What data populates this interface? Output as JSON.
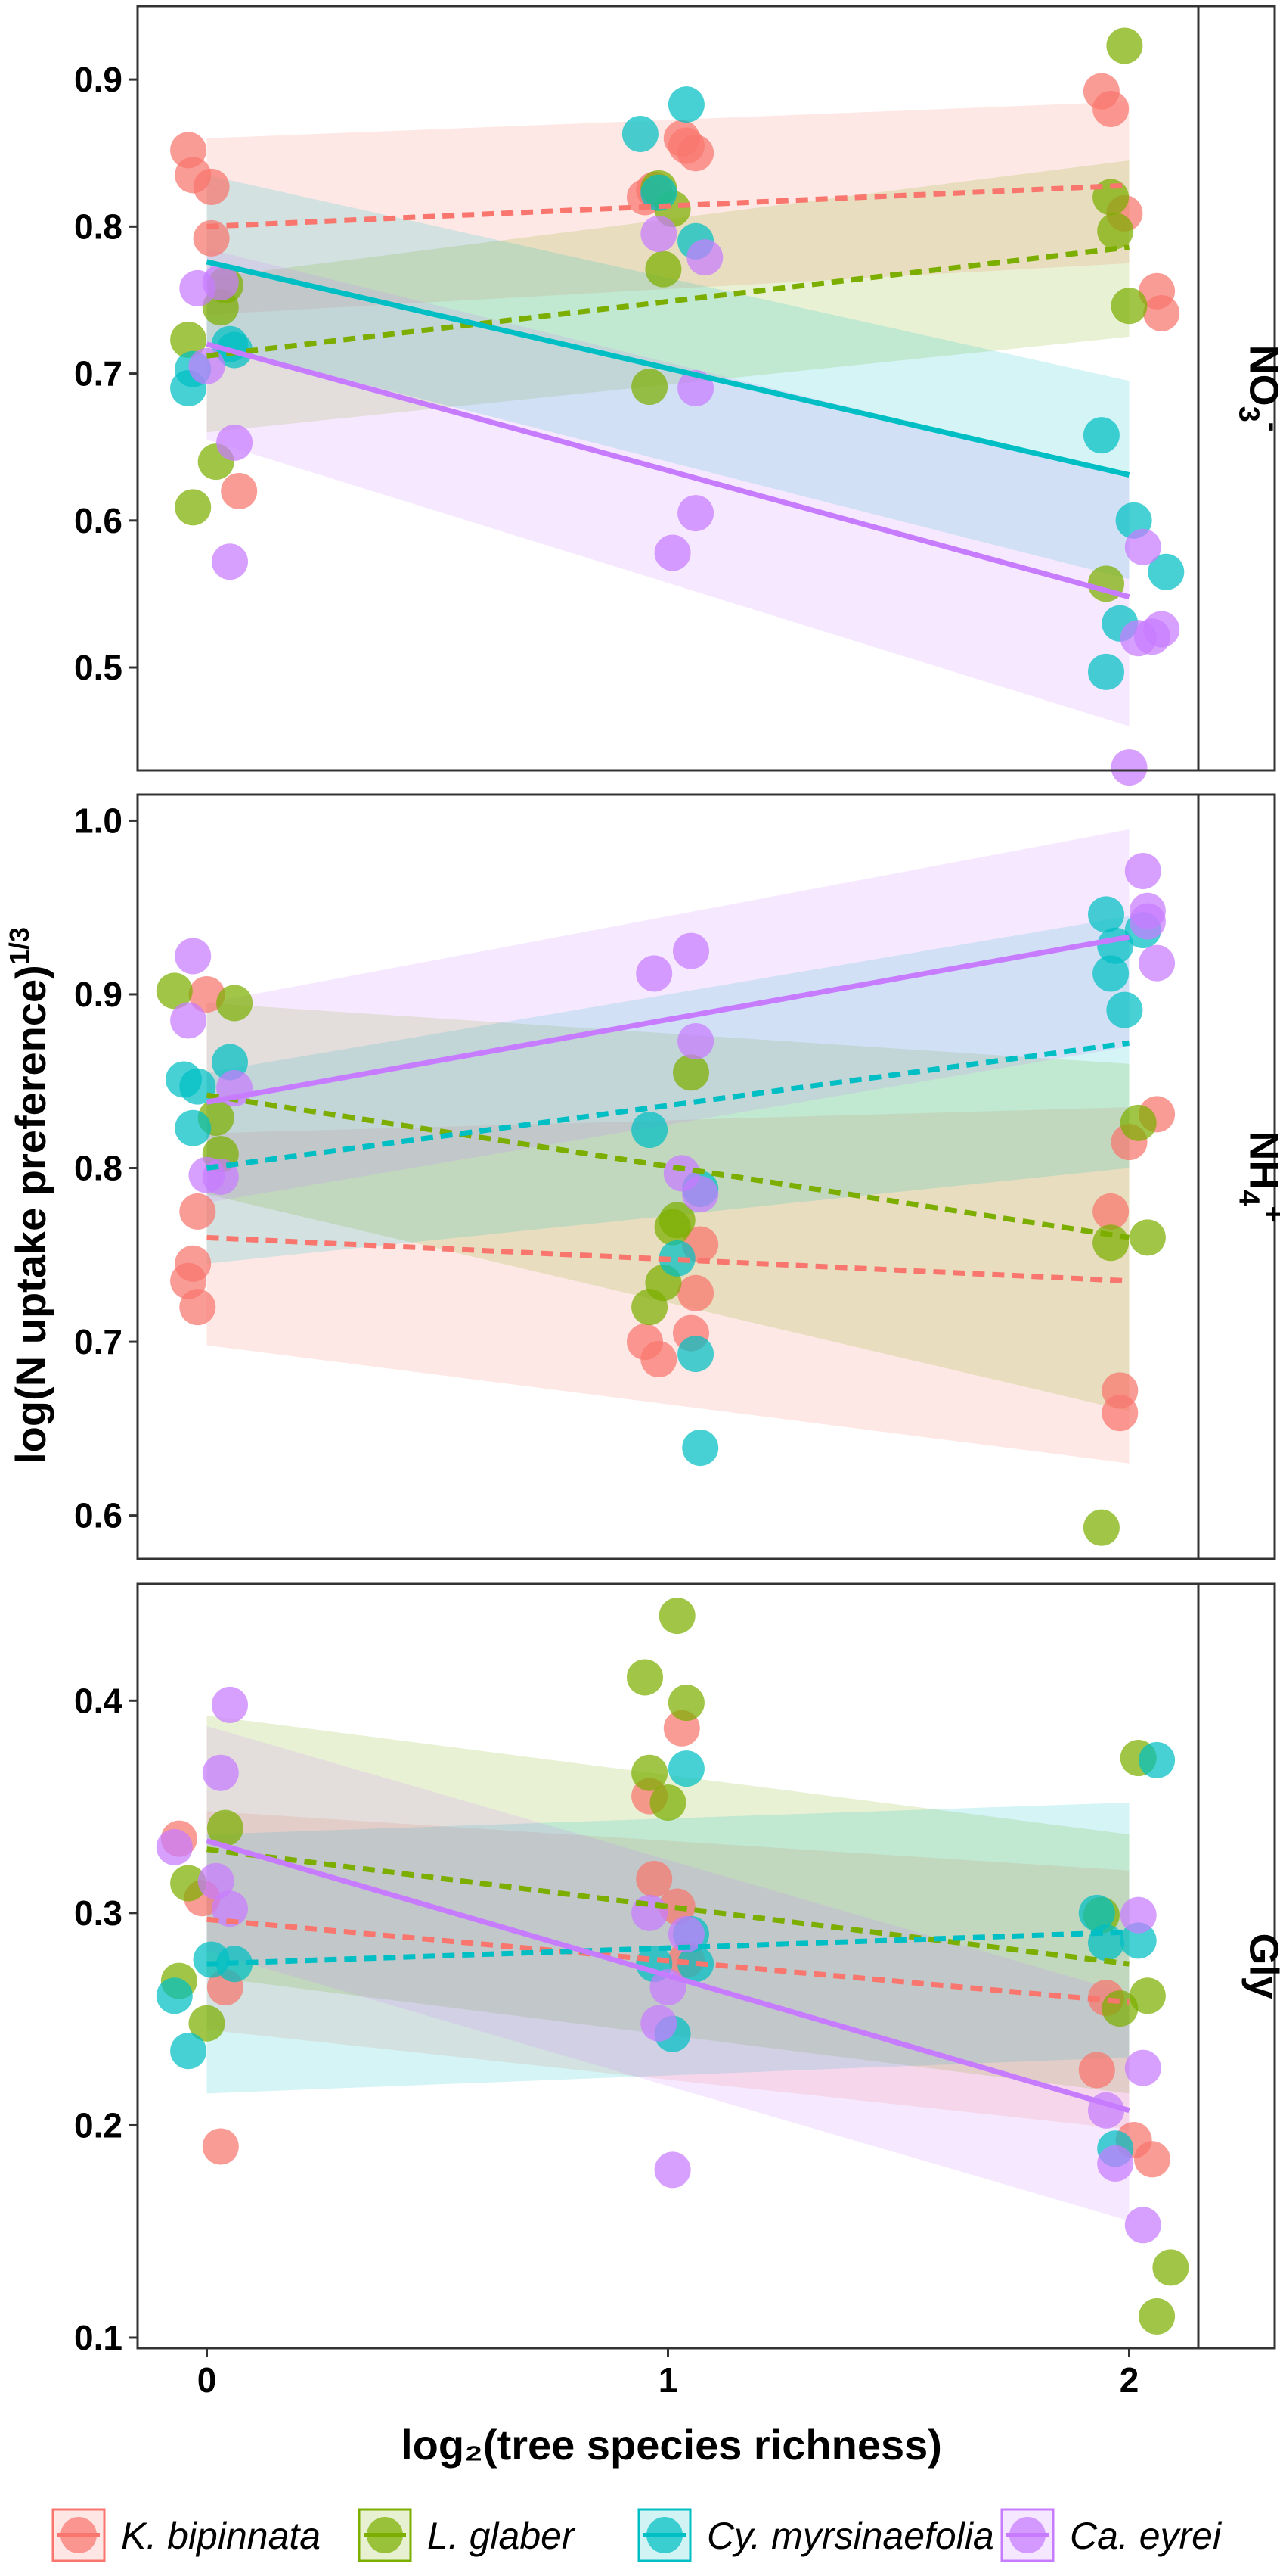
{
  "colors": {
    "K. bipinnata": "#f8766d",
    "L. glaber": "#7cae00",
    "Cy. myrsinaefolia": "#00bfc4",
    "Ca. eyrei": "#c77cff"
  },
  "legend": [
    "K. bipinnata",
    "L. glaber",
    "Cy. myrsinaefolia",
    "Ca. eyrei"
  ],
  "chart_data": {
    "type": "scatter",
    "xlabel": "log₂(tree species richness)",
    "ylabel": "log(N uptake preference)",
    "ylabel_sup": "1/3",
    "x_ticks": [
      0,
      1,
      2
    ],
    "xlim": [
      -0.15,
      2.15
    ],
    "grid": false,
    "legend_position": "bottom",
    "panels": [
      {
        "strip": "NO₃⁻",
        "strip_main": "NO",
        "strip_sub": "3",
        "strip_sup": "-",
        "ylim": [
          0.43,
          0.95
        ],
        "y_ticks": [
          "0.5",
          "0.6",
          "0.7",
          "0.8",
          "0.9"
        ],
        "series": [
          {
            "name": "K. bipinnata",
            "points": [
              [
                -0.04,
                0.852
              ],
              [
                -0.03,
                0.835
              ],
              [
                0.01,
                0.827
              ],
              [
                0.01,
                0.792
              ],
              [
                0.07,
                0.62
              ],
              [
                0.95,
                0.82
              ],
              [
                0.97,
                0.825
              ],
              [
                1.03,
                0.86
              ],
              [
                1.04,
                0.855
              ],
              [
                1.06,
                0.85
              ],
              [
                1.94,
                0.892
              ],
              [
                1.96,
                0.88
              ],
              [
                1.99,
                0.809
              ],
              [
                2.06,
                0.756
              ],
              [
                2.07,
                0.741
              ]
            ],
            "trend": {
              "y0": 0.8,
              "y2": 0.828,
              "dashed": true,
              "ci_low": [
                0.74,
                0.775
              ],
              "ci_high": [
                0.86,
                0.885
              ]
            }
          },
          {
            "name": "L. glaber",
            "points": [
              [
                -0.04,
                0.723
              ],
              [
                -0.03,
                0.609
              ],
              [
                0.02,
                0.64
              ],
              [
                0.03,
                0.745
              ],
              [
                0.04,
                0.76
              ],
              [
                0.96,
                0.691
              ],
              [
                0.98,
                0.826
              ],
              [
                0.99,
                0.771
              ],
              [
                1.01,
                0.812
              ],
              [
                1.95,
                0.557
              ],
              [
                1.96,
                0.82
              ],
              [
                1.97,
                0.797
              ],
              [
                1.99,
                0.923
              ],
              [
                2.0,
                0.746
              ]
            ],
            "trend": {
              "y0": 0.712,
              "y2": 0.786,
              "dashed": true,
              "ci_low": [
                0.66,
                0.725
              ],
              "ci_high": [
                0.765,
                0.845
              ]
            }
          },
          {
            "name": "Cy. myrsinaefolia",
            "points": [
              [
                -0.04,
                0.69
              ],
              [
                -0.03,
                0.703
              ],
              [
                0.05,
                0.72
              ],
              [
                0.06,
                0.716
              ],
              [
                0.94,
                0.863
              ],
              [
                0.98,
                0.823
              ],
              [
                1.04,
                0.883
              ],
              [
                1.06,
                0.79
              ],
              [
                1.94,
                0.658
              ],
              [
                1.95,
                0.497
              ],
              [
                1.98,
                0.53
              ],
              [
                2.01,
                0.6
              ],
              [
                2.08,
                0.565
              ]
            ],
            "trend": {
              "y0": 0.776,
              "y2": 0.631,
              "dashed": false,
              "ci_low": [
                0.72,
                0.56
              ],
              "ci_high": [
                0.835,
                0.695
              ]
            }
          },
          {
            "name": "Ca. eyrei",
            "points": [
              [
                -0.02,
                0.758
              ],
              [
                0.03,
                0.762
              ],
              [
                0.05,
                0.572
              ],
              [
                0.06,
                0.653
              ],
              [
                0.0,
                0.705
              ],
              [
                0.98,
                0.795
              ],
              [
                1.01,
                0.578
              ],
              [
                1.06,
                0.69
              ],
              [
                1.06,
                0.605
              ],
              [
                1.08,
                0.779
              ],
              [
                2.0,
                0.432
              ],
              [
                2.02,
                0.52
              ],
              [
                2.03,
                0.582
              ],
              [
                2.05,
                0.521
              ],
              [
                2.07,
                0.526
              ]
            ],
            "trend": {
              "y0": 0.72,
              "y2": 0.548,
              "dashed": false,
              "ci_low": [
                0.655,
                0.46
              ],
              "ci_high": [
                0.785,
                0.63
              ]
            }
          }
        ]
      },
      {
        "strip": "NH₄⁺",
        "strip_main": "NH",
        "strip_sub": "4",
        "strip_sup": "+",
        "ylim": [
          0.575,
          1.015
        ],
        "y_ticks": [
          "0.6",
          "0.7",
          "0.8",
          "0.9",
          "1.0"
        ],
        "series": [
          {
            "name": "K. bipinnata",
            "points": [
              [
                -0.04,
                0.735
              ],
              [
                -0.03,
                0.745
              ],
              [
                -0.02,
                0.72
              ],
              [
                -0.02,
                0.775
              ],
              [
                0.0,
                0.9
              ],
              [
                0.95,
                0.7
              ],
              [
                0.98,
                0.69
              ],
              [
                1.05,
                0.705
              ],
              [
                1.06,
                0.728
              ],
              [
                1.07,
                0.756
              ],
              [
                1.96,
                0.775
              ],
              [
                1.98,
                0.672
              ],
              [
                1.98,
                0.659
              ],
              [
                2.0,
                0.815
              ],
              [
                2.06,
                0.831
              ]
            ],
            "trend": {
              "y0": 0.76,
              "y2": 0.735,
              "dashed": true,
              "ci_low": [
                0.698,
                0.63
              ],
              "ci_high": [
                0.82,
                0.835
              ]
            }
          },
          {
            "name": "L. glaber",
            "points": [
              [
                -0.07,
                0.902
              ],
              [
                0.02,
                0.829
              ],
              [
                0.03,
                0.808
              ],
              [
                0.06,
                0.895
              ],
              [
                0.96,
                0.72
              ],
              [
                0.99,
                0.734
              ],
              [
                1.01,
                0.766
              ],
              [
                1.02,
                0.77
              ],
              [
                1.05,
                0.855
              ],
              [
                1.94,
                0.593
              ],
              [
                1.96,
                0.757
              ],
              [
                2.02,
                0.826
              ],
              [
                2.04,
                0.76
              ]
            ],
            "trend": {
              "y0": 0.842,
              "y2": 0.76,
              "dashed": true,
              "ci_low": [
                0.785,
                0.66
              ],
              "ci_high": [
                0.895,
                0.86
              ]
            }
          },
          {
            "name": "Cy. myrsinaefolia",
            "points": [
              [
                -0.05,
                0.851
              ],
              [
                -0.03,
                0.823
              ],
              [
                -0.02,
                0.847
              ],
              [
                0.05,
                0.861
              ],
              [
                0.96,
                0.822
              ],
              [
                1.02,
                0.748
              ],
              [
                1.06,
                0.693
              ],
              [
                1.07,
                0.788
              ],
              [
                1.07,
                0.639
              ],
              [
                1.95,
                0.946
              ],
              [
                1.96,
                0.912
              ],
              [
                1.97,
                0.928
              ],
              [
                1.99,
                0.891
              ],
              [
                2.03,
                0.937
              ]
            ],
            "trend": {
              "y0": 0.8,
              "y2": 0.872,
              "dashed": true,
              "ci_low": [
                0.745,
                0.8
              ],
              "ci_high": [
                0.855,
                0.945
              ]
            }
          },
          {
            "name": "Ca. eyrei",
            "points": [
              [
                -0.03,
                0.922
              ],
              [
                -0.04,
                0.885
              ],
              [
                0.0,
                0.796
              ],
              [
                0.03,
                0.795
              ],
              [
                0.06,
                0.846
              ],
              [
                0.97,
                0.912
              ],
              [
                1.05,
                0.925
              ],
              [
                1.03,
                0.797
              ],
              [
                1.06,
                0.873
              ],
              [
                1.07,
                0.785
              ],
              [
                2.03,
                0.971
              ],
              [
                2.04,
                0.948
              ],
              [
                2.06,
                0.918
              ],
              [
                2.04,
                0.942
              ]
            ],
            "trend": {
              "y0": 0.838,
              "y2": 0.933,
              "dashed": false,
              "ci_low": [
                0.78,
                0.87
              ],
              "ci_high": [
                0.895,
                0.995
              ]
            }
          }
        ]
      },
      {
        "strip": "Gly",
        "ylim": [
          0.095,
          0.455
        ],
        "y_ticks": [
          "0.1",
          "0.2",
          "0.3",
          "0.4"
        ],
        "series": [
          {
            "name": "K. bipinnata",
            "points": [
              [
                -0.06,
                0.335
              ],
              [
                -0.01,
                0.307
              ],
              [
                0.03,
                0.19
              ],
              [
                0.04,
                0.265
              ],
              [
                0.96,
                0.355
              ],
              [
                0.97,
                0.316
              ],
              [
                1.02,
                0.303
              ],
              [
                1.03,
                0.387
              ],
              [
                1.04,
                0.278
              ],
              [
                1.93,
                0.226
              ],
              [
                1.95,
                0.26
              ],
              [
                2.01,
                0.193
              ],
              [
                2.05,
                0.184
              ]
            ],
            "trend": {
              "y0": 0.297,
              "y2": 0.258,
              "dashed": true,
              "ci_low": [
                0.245,
                0.198
              ],
              "ci_high": [
                0.348,
                0.32
              ]
            }
          },
          {
            "name": "L. glaber",
            "points": [
              [
                -0.06,
                0.268
              ],
              [
                -0.04,
                0.314
              ],
              [
                0.0,
                0.248
              ],
              [
                0.04,
                0.34
              ],
              [
                0.95,
                0.411
              ],
              [
                0.96,
                0.366
              ],
              [
                1.0,
                0.352
              ],
              [
                1.02,
                0.44
              ],
              [
                1.04,
                0.399
              ],
              [
                1.94,
                0.299
              ],
              [
                1.98,
                0.255
              ],
              [
                2.02,
                0.373
              ],
              [
                2.04,
                0.261
              ],
              [
                2.06,
                0.11
              ],
              [
                2.09,
                0.133
              ]
            ],
            "trend": {
              "y0": 0.33,
              "y2": 0.276,
              "dashed": true,
              "ci_low": [
                0.27,
                0.215
              ],
              "ci_high": [
                0.393,
                0.337
              ]
            }
          },
          {
            "name": "Cy. myrsinaefolia",
            "points": [
              [
                -0.07,
                0.261
              ],
              [
                -0.04,
                0.235
              ],
              [
                0.01,
                0.278
              ],
              [
                0.06,
                0.276
              ],
              [
                0.97,
                0.276
              ],
              [
                1.01,
                0.243
              ],
              [
                1.04,
                0.368
              ],
              [
                1.05,
                0.29
              ],
              [
                1.06,
                0.276
              ],
              [
                1.93,
                0.3
              ],
              [
                1.95,
                0.286
              ],
              [
                1.97,
                0.189
              ],
              [
                2.02,
                0.287
              ],
              [
                2.06,
                0.372
              ]
            ],
            "trend": {
              "y0": 0.276,
              "y2": 0.291,
              "dashed": true,
              "ci_low": [
                0.215,
                0.232
              ],
              "ci_high": [
                0.337,
                0.352
              ]
            }
          },
          {
            "name": "Ca. eyrei",
            "points": [
              [
                -0.07,
                0.331
              ],
              [
                0.02,
                0.315
              ],
              [
                0.03,
                0.366
              ],
              [
                0.05,
                0.302
              ],
              [
                0.05,
                0.398
              ],
              [
                0.96,
                0.3
              ],
              [
                0.98,
                0.248
              ],
              [
                1.0,
                0.265
              ],
              [
                1.01,
                0.179
              ],
              [
                1.04,
                0.29
              ],
              [
                1.95,
                0.207
              ],
              [
                1.97,
                0.182
              ],
              [
                2.02,
                0.299
              ],
              [
                2.03,
                0.153
              ],
              [
                2.03,
                0.227
              ]
            ],
            "trend": {
              "y0": 0.334,
              "y2": 0.207,
              "dashed": false,
              "ci_low": [
                0.282,
                0.155
              ],
              "ci_high": [
                0.388,
                0.262
              ]
            }
          }
        ]
      }
    ]
  }
}
